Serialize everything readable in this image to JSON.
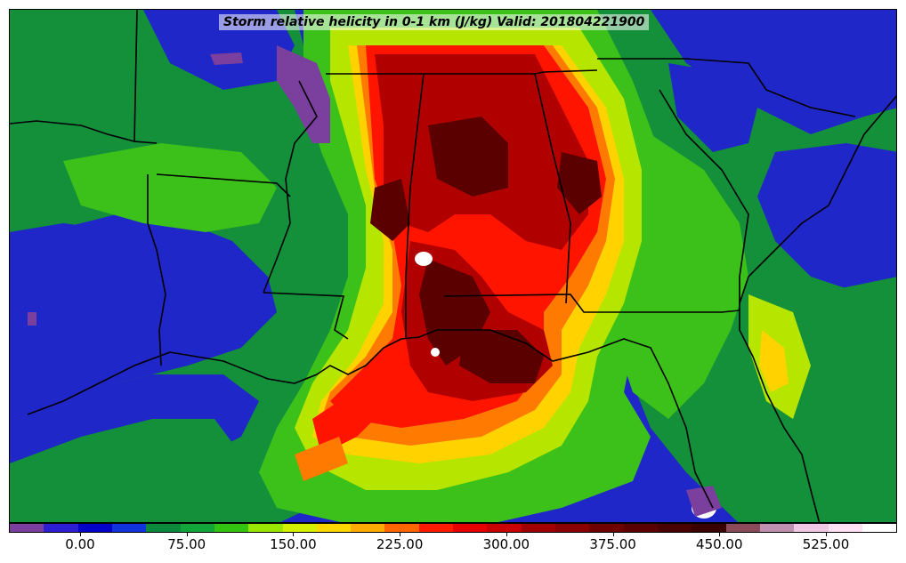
{
  "title": "Storm relative helicity in 0-1 km (J/kg) Valid: 201804221900",
  "colorbar": {
    "colors": [
      "#7b3f9e",
      "#2b1fd1",
      "#0000c8",
      "#1133dd",
      "#0a8a3a",
      "#11a53a",
      "#33c411",
      "#99e600",
      "#d4f000",
      "#ffd700",
      "#ffaa00",
      "#ff6600",
      "#ff1a00",
      "#e60000",
      "#c80000",
      "#a00000",
      "#8b0000",
      "#6e0000",
      "#5a0000",
      "#480000",
      "#3a0000",
      "#8b4a5a",
      "#c090b0",
      "#f0c8e6",
      "#ffe0f5",
      "#ffffff"
    ],
    "tick_labels": [
      "0.00",
      "75.00",
      "150.00",
      "225.00",
      "300.00",
      "375.00",
      "450.00",
      "525.00"
    ]
  },
  "map": {
    "fields": {
      "background_ocean": "#2b2fd0",
      "low_green": "#148f3a",
      "mid_green": "#3cc01a",
      "yellow_green": "#b6e600",
      "yellow": "#ffd200",
      "orange": "#ff7a00",
      "red": "#ff1400",
      "dark_red": "#b00000",
      "darkest_red": "#5a0000",
      "white": "#ffffff",
      "purple": "#7b3f9e"
    }
  }
}
